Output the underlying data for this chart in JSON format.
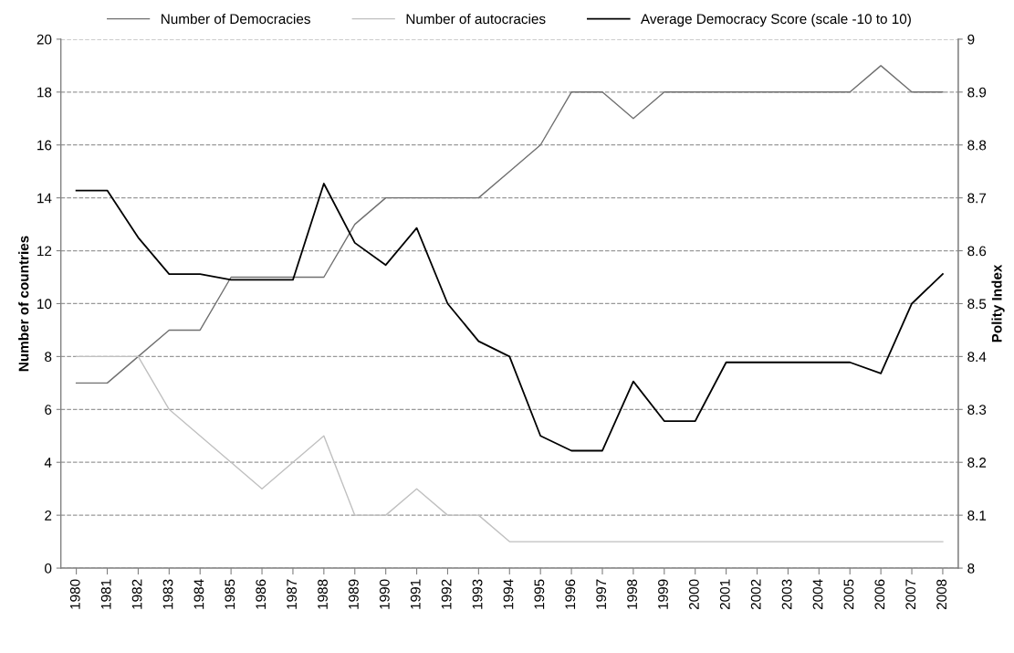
{
  "chart_data": {
    "type": "line",
    "ylabel": "Number of countries",
    "y2label": "Polity Index",
    "categories": [
      "1980",
      "1981",
      "1982",
      "1983",
      "1984",
      "1985",
      "1986",
      "1987",
      "1988",
      "1989",
      "1990",
      "1991",
      "1992",
      "1993",
      "1994",
      "1995",
      "1996",
      "1997",
      "1998",
      "1999",
      "2000",
      "2001",
      "2002",
      "2003",
      "2004",
      "2005",
      "2006",
      "2007",
      "2008"
    ],
    "series": [
      {
        "name": "Number of Democracies",
        "color": "#707070",
        "values": [
          7,
          7,
          8,
          9,
          9,
          11,
          11,
          11,
          11,
          13,
          14,
          14,
          14,
          14,
          15,
          16,
          18,
          18,
          17,
          18,
          18,
          18,
          18,
          18,
          18,
          18,
          19,
          18,
          18
        ]
      },
      {
        "name": "Number of autocracies",
        "color": "#c0c0c0",
        "values": [
          8,
          8,
          8,
          6,
          5,
          4,
          3,
          4,
          5,
          2,
          2,
          3,
          2,
          2,
          1,
          1,
          1,
          1,
          1,
          1,
          1,
          1,
          1,
          1,
          1,
          1,
          1,
          1,
          1
        ]
      },
      {
        "name": "Average Democracy Score (scale -10 to 10)",
        "color": "#000000",
        "axis": "y2",
        "values": [
          8.714,
          8.714,
          8.625,
          8.556,
          8.556,
          8.545,
          8.545,
          8.545,
          8.727,
          8.615,
          8.573,
          8.643,
          8.5,
          8.429,
          8.4,
          8.25,
          8.222,
          8.222,
          8.353,
          8.278,
          8.278,
          8.389,
          8.389,
          8.389,
          8.389,
          8.389,
          8.368,
          8.5,
          8.556
        ]
      }
    ],
    "ylim": [
      0,
      20
    ],
    "yticks": [
      0,
      2,
      4,
      6,
      8,
      10,
      12,
      14,
      16,
      18,
      20
    ],
    "y2lim": [
      8,
      9
    ],
    "y2ticks": [
      8,
      8.1,
      8.2,
      8.3,
      8.4,
      8.5,
      8.6,
      8.7,
      8.8,
      8.9,
      9
    ],
    "grid": "y",
    "legend": "top",
    "marker": "none",
    "line_style": "solid"
  }
}
